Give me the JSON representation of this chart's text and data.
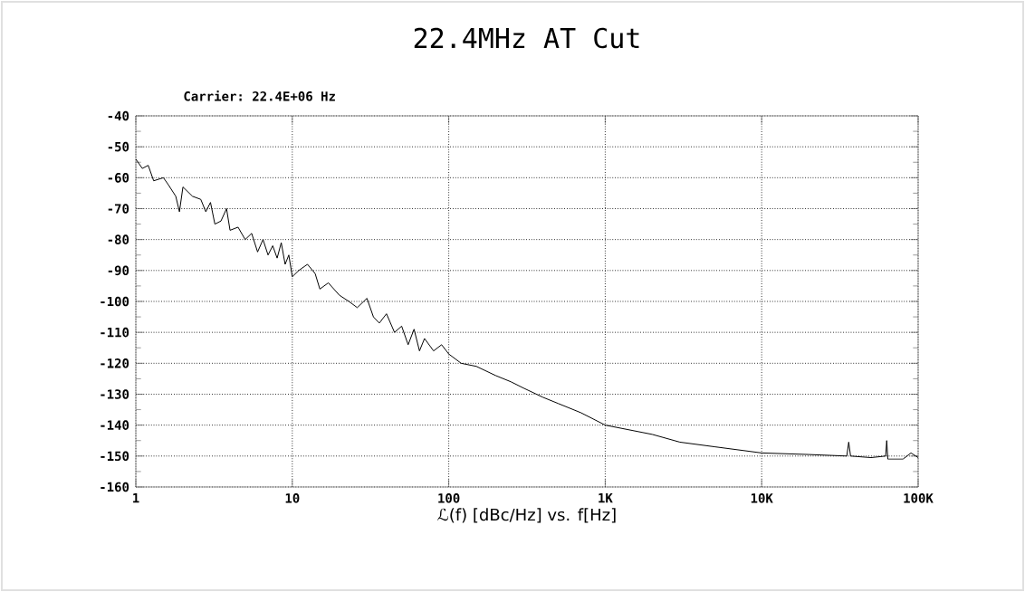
{
  "chart_data": {
    "type": "line",
    "title": "22.4MHz AT Cut",
    "xlabel": "ℒ(f) [dBc/Hz] vs. f[Hz]",
    "annotations": [
      "Carrier: 22.4E+06 Hz"
    ],
    "log": "x",
    "grid": true,
    "xlim": [
      1,
      100000
    ],
    "ylim": [
      -160,
      -40
    ],
    "xticks": [
      1,
      10,
      100,
      {
        "value": 1000,
        "label": "1K"
      },
      {
        "value": 10000,
        "label": "10K"
      },
      {
        "value": 100000,
        "label": "100K"
      }
    ],
    "yticks": [
      -160,
      -150,
      -140,
      -130,
      -120,
      -110,
      -100,
      -90,
      -80,
      -70,
      -60,
      -50,
      -40
    ],
    "series": [
      {
        "color": "#000000",
        "x": [
          1,
          1.1,
          1.2,
          1.3,
          1.5,
          1.6,
          1.8,
          1.9,
          2,
          2.3,
          2.6,
          2.8,
          3,
          3.2,
          3.5,
          3.8,
          4,
          4.5,
          5,
          5.5,
          6,
          6.5,
          7,
          7.5,
          8,
          8.5,
          9,
          9.5,
          10,
          11,
          12.5,
          14,
          15,
          17,
          20,
          23,
          26,
          30,
          33,
          36,
          40,
          45,
          50,
          55,
          60,
          65,
          70,
          80,
          90,
          100,
          120,
          150,
          200,
          250,
          300,
          400,
          500,
          700,
          1000,
          2000,
          3000,
          5000,
          10000,
          20000,
          35000,
          36000,
          37000,
          50000,
          62000,
          63000,
          64000,
          80000,
          90000,
          100000
        ],
        "values": [
          -54,
          -57,
          -56,
          -61,
          -60,
          -62,
          -66,
          -71,
          -63,
          -66,
          -67,
          -71,
          -68,
          -75,
          -74,
          -70,
          -77,
          -76,
          -80,
          -78,
          -84,
          -80,
          -85,
          -82,
          -86,
          -81,
          -88,
          -85,
          -92,
          -90,
          -88,
          -91,
          -96,
          -94,
          -98,
          -100,
          -102,
          -99,
          -105,
          -107,
          -104,
          -110,
          -108,
          -114,
          -109,
          -116,
          -112,
          -116,
          -114,
          -117,
          -120,
          -121,
          -124,
          -126,
          -128,
          -131,
          -133,
          -136,
          -140,
          -143,
          -145.5,
          -147,
          -149,
          -149.5,
          -150,
          -145.5,
          -150,
          -150.5,
          -150,
          -145,
          -151,
          -151,
          -149,
          -150.5
        ]
      }
    ]
  }
}
